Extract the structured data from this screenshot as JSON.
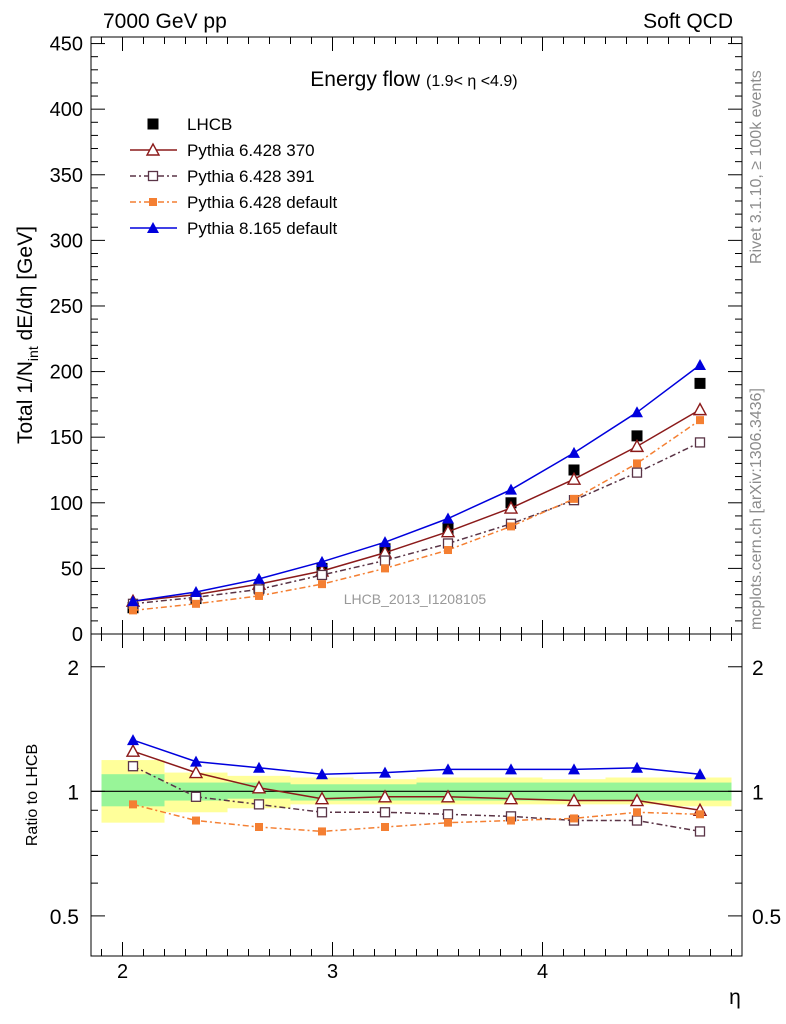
{
  "header": {
    "left": "7000 GeV pp",
    "right": "Soft QCD"
  },
  "side_text": {
    "rivet": "Rivet 3.1.10, ≥ 100k events",
    "mcplots": "mcplots.cern.ch [arXiv:1306.3436]"
  },
  "analysis_id": "LHCB_2013_I1208105",
  "colors": {
    "lhcb": "#000000",
    "p370": "#8b1a1a",
    "p391": "#5a3446",
    "p6def": "#f47f32",
    "p8def": "#0000dd",
    "band_green": "#98f598",
    "band_yellow": "#ffff9a"
  },
  "chart_data": [
    {
      "type": "line",
      "title": "Energy flow",
      "title_sub": "(1.9< η <4.9)",
      "ylabel": "Total 1/N_int dE/dη [GeV]",
      "ylabel_parts": {
        "main": "Total 1/N",
        "sub": "int",
        "rest": " dE/dη [GeV]"
      },
      "xlim": [
        1.85,
        4.95
      ],
      "ylim": [
        0,
        455
      ],
      "yticks": [
        0,
        50,
        100,
        150,
        200,
        250,
        300,
        350,
        400,
        450
      ],
      "ytick_labels": [
        "0",
        "50",
        "100",
        "150",
        "200",
        "250",
        "300",
        "350",
        "400",
        "450"
      ],
      "x": [
        2.05,
        2.35,
        2.65,
        2.95,
        3.25,
        3.55,
        3.85,
        4.15,
        4.45,
        4.75
      ],
      "x_edges": [
        1.9,
        2.2,
        2.5,
        2.8,
        3.1,
        3.4,
        3.7,
        4.0,
        4.3,
        4.6,
        4.9
      ],
      "legend": [
        "LHCB",
        "Pythia 6.428 370",
        "Pythia 6.428 391",
        "Pythia 6.428 default",
        "Pythia 8.165 default"
      ],
      "series": [
        {
          "name": "LHCB",
          "color_key": "lhcb",
          "marker": "square-filled",
          "line": "none",
          "values": [
            20,
            27,
            35,
            50,
            65,
            80,
            100,
            125,
            151,
            191
          ]
        },
        {
          "name": "Pythia 6.428 370",
          "color_key": "p370",
          "marker": "triangle-open",
          "line": "solid",
          "values": [
            25,
            30,
            38,
            48,
            62,
            78,
            96,
            118,
            143,
            171
          ]
        },
        {
          "name": "Pythia 6.428 391",
          "color_key": "p391",
          "marker": "square-open",
          "line": "dashdot",
          "values": [
            23,
            28,
            34,
            45,
            56,
            69,
            84,
            102,
            123,
            146
          ]
        },
        {
          "name": "Pythia 6.428 default",
          "color_key": "p6def",
          "marker": "square-filled-small",
          "line": "dashdot",
          "values": [
            18,
            23,
            29,
            38,
            50,
            64,
            82,
            103,
            130,
            163
          ]
        },
        {
          "name": "Pythia 8.165 default",
          "color_key": "p8def",
          "marker": "triangle-filled",
          "line": "solid",
          "values": [
            25,
            32,
            42,
            55,
            70,
            88,
            110,
            138,
            169,
            205
          ]
        }
      ]
    },
    {
      "type": "line",
      "ylabel": "Ratio to LHCB",
      "yscale": "log",
      "ylim": [
        0.4,
        2.4
      ],
      "yticks": [
        0.5,
        1,
        2
      ],
      "ytick_labels": [
        "0.5",
        "1",
        "2"
      ],
      "xticks": [
        2,
        3,
        4
      ],
      "xtick_labels": [
        "2",
        "3",
        "4"
      ],
      "xlabel": "η",
      "reference": 1,
      "band_inner": [
        [
          0.92,
          1.1
        ],
        [
          0.95,
          1.05
        ],
        [
          0.96,
          1.05
        ],
        [
          0.95,
          1.04
        ],
        [
          0.95,
          1.04
        ],
        [
          0.95,
          1.05
        ],
        [
          0.95,
          1.05
        ],
        [
          0.95,
          1.05
        ],
        [
          0.95,
          1.05
        ],
        [
          0.95,
          1.05
        ]
      ],
      "band_outer": [
        [
          0.84,
          1.19
        ],
        [
          0.89,
          1.11
        ],
        [
          0.91,
          1.09
        ],
        [
          0.93,
          1.08
        ],
        [
          0.93,
          1.07
        ],
        [
          0.93,
          1.08
        ],
        [
          0.93,
          1.08
        ],
        [
          0.93,
          1.07
        ],
        [
          0.93,
          1.08
        ],
        [
          0.92,
          1.08
        ]
      ],
      "series": [
        {
          "name": "Pythia 6.428 370",
          "color_key": "p370",
          "marker": "triangle-open",
          "line": "solid",
          "values": [
            1.25,
            1.11,
            1.02,
            0.96,
            0.97,
            0.97,
            0.96,
            0.95,
            0.95,
            0.9
          ]
        },
        {
          "name": "Pythia 6.428 391",
          "color_key": "p391",
          "marker": "square-open",
          "line": "dashdot",
          "values": [
            1.15,
            0.97,
            0.93,
            0.89,
            0.89,
            0.88,
            0.87,
            0.85,
            0.85,
            0.8
          ]
        },
        {
          "name": "Pythia 6.428 default",
          "color_key": "p6def",
          "marker": "square-filled-small",
          "line": "dashdot",
          "values": [
            0.93,
            0.85,
            0.82,
            0.8,
            0.82,
            0.84,
            0.85,
            0.86,
            0.89,
            0.88
          ]
        },
        {
          "name": "Pythia 8.165 default",
          "color_key": "p8def",
          "marker": "triangle-filled",
          "line": "solid",
          "values": [
            1.33,
            1.18,
            1.14,
            1.1,
            1.11,
            1.13,
            1.13,
            1.13,
            1.14,
            1.1
          ]
        }
      ]
    }
  ]
}
